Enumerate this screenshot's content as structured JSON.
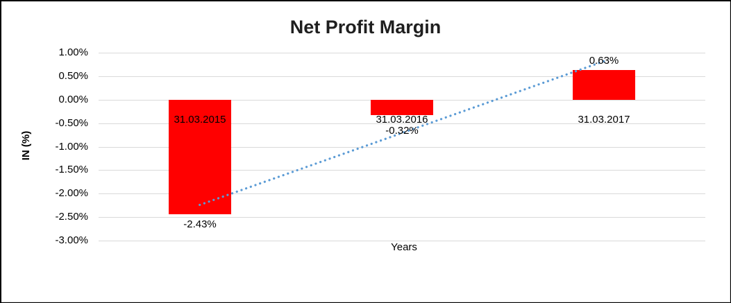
{
  "chart_data": {
    "type": "bar",
    "title": "Net Profit Margin",
    "xlabel": "Years",
    "ylabel": "IN (%)",
    "categories": [
      "31.03.2015",
      "31.03.2016",
      "31.03.2017"
    ],
    "values": [
      -2.43,
      -0.32,
      0.63
    ],
    "data_labels": [
      "-2.43%",
      "-0.32%",
      "0.63%"
    ],
    "ylim": [
      -3.0,
      1.0
    ],
    "ytick_step": 0.5,
    "ytick_labels": [
      "1.00%",
      "0.50%",
      "0.00%",
      "-0.50%",
      "-1.00%",
      "-1.50%",
      "-2.00%",
      "-2.50%",
      "-3.00%"
    ],
    "grid": true,
    "legend": "none",
    "bar_color": "#ff0000",
    "gridline_color": "#d9d9d9",
    "trendline": {
      "type": "linear",
      "style": "dotted",
      "color": "#5b9bd5",
      "endpoint_values": [
        -2.24,
        0.82
      ]
    }
  }
}
